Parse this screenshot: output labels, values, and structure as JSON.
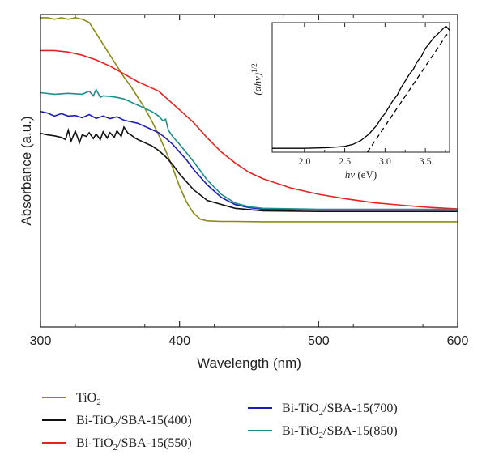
{
  "chart_data": [
    {
      "type": "line",
      "xlabel": "Wavelength (nm)",
      "ylabel": "Absorbance (a.u.)",
      "xlim": [
        300,
        600
      ],
      "ylim": [
        0,
        1
      ],
      "xticks": [
        "300",
        "400",
        "500",
        "600"
      ],
      "yticks": [],
      "legend_position": "bottom",
      "series": [
        {
          "name": "TiO2",
          "name_parts": [
            "TiO",
            "2",
            ""
          ],
          "color": "#8b8b14",
          "x": [
            300,
            305,
            310,
            315,
            320,
            325,
            330,
            335,
            340,
            345,
            350,
            355,
            360,
            365,
            370,
            375,
            380,
            385,
            390,
            395,
            400,
            405,
            410,
            415,
            420,
            430,
            440,
            460,
            500,
            550,
            600
          ],
          "y": [
            0.99,
            0.99,
            0.985,
            0.99,
            0.985,
            0.99,
            0.985,
            0.975,
            0.94,
            0.905,
            0.87,
            0.835,
            0.8,
            0.77,
            0.735,
            0.7,
            0.66,
            0.615,
            0.565,
            0.51,
            0.45,
            0.4,
            0.365,
            0.345,
            0.34,
            0.338,
            0.338,
            0.337,
            0.337,
            0.337,
            0.337
          ]
        },
        {
          "name": "Bi-TiO2/SBA-15(400)",
          "name_parts": [
            "Bi-TiO",
            "2",
            "/SBA-15(400)"
          ],
          "color": "#111111",
          "x": [
            300,
            305,
            310,
            315,
            318,
            320,
            322,
            325,
            328,
            330,
            333,
            335,
            338,
            340,
            343,
            345,
            348,
            350,
            353,
            355,
            358,
            360,
            363,
            365,
            368,
            370,
            375,
            380,
            385,
            390,
            395,
            400,
            410,
            420,
            440,
            460,
            500,
            550,
            600
          ],
          "y": [
            0.62,
            0.615,
            0.612,
            0.607,
            0.6,
            0.63,
            0.595,
            0.627,
            0.59,
            0.615,
            0.61,
            0.622,
            0.603,
            0.618,
            0.6,
            0.625,
            0.605,
            0.622,
            0.607,
            0.628,
            0.61,
            0.64,
            0.62,
            0.615,
            0.605,
            0.6,
            0.59,
            0.58,
            0.565,
            0.545,
            0.52,
            0.49,
            0.44,
            0.405,
            0.38,
            0.372,
            0.37,
            0.37,
            0.37
          ]
        },
        {
          "name": "Bi-TiO2/SBA-15(550)",
          "name_parts": [
            "Bi-TiO",
            "2",
            "/SBA-15(550)"
          ],
          "color": "#e8231f",
          "x": [
            300,
            310,
            320,
            330,
            340,
            350,
            360,
            370,
            380,
            385,
            390,
            395,
            400,
            410,
            420,
            430,
            440,
            450,
            460,
            480,
            500,
            520,
            540,
            560,
            580,
            600
          ],
          "y": [
            0.885,
            0.885,
            0.88,
            0.87,
            0.855,
            0.835,
            0.81,
            0.785,
            0.765,
            0.755,
            0.735,
            0.715,
            0.695,
            0.655,
            0.605,
            0.56,
            0.525,
            0.495,
            0.475,
            0.445,
            0.425,
            0.41,
            0.398,
            0.39,
            0.383,
            0.378
          ]
        },
        {
          "name": "Bi-TiO2/SBA-15(700)",
          "name_parts": [
            "Bi-TiO",
            "2",
            "/SBA-15(700)"
          ],
          "color": "#1c1cb8",
          "x": [
            300,
            305,
            310,
            315,
            320,
            325,
            330,
            335,
            340,
            345,
            350,
            355,
            360,
            365,
            370,
            375,
            380,
            385,
            390,
            395,
            400,
            405,
            410,
            420,
            430,
            440,
            450,
            460,
            500,
            550,
            600
          ],
          "y": [
            0.69,
            0.685,
            0.675,
            0.683,
            0.675,
            0.677,
            0.67,
            0.68,
            0.668,
            0.675,
            0.667,
            0.673,
            0.662,
            0.657,
            0.652,
            0.642,
            0.632,
            0.622,
            0.605,
            0.585,
            0.56,
            0.535,
            0.505,
            0.455,
            0.415,
            0.392,
            0.382,
            0.377,
            0.375,
            0.375,
            0.375
          ]
        },
        {
          "name": "Bi-TiO2/SBA-15(850)",
          "name_parts": [
            "Bi-TiO",
            "2",
            "/SBA-15(850)"
          ],
          "color": "#19908c",
          "x": [
            300,
            310,
            320,
            330,
            335,
            338,
            340,
            343,
            345,
            350,
            355,
            360,
            365,
            370,
            375,
            380,
            385,
            388,
            390,
            392,
            395,
            400,
            410,
            420,
            430,
            440,
            450,
            460,
            500,
            550,
            600
          ],
          "y": [
            0.75,
            0.745,
            0.748,
            0.745,
            0.755,
            0.74,
            0.76,
            0.735,
            0.74,
            0.738,
            0.735,
            0.73,
            0.72,
            0.71,
            0.7,
            0.69,
            0.675,
            0.66,
            0.665,
            0.63,
            0.61,
            0.585,
            0.53,
            0.47,
            0.425,
            0.397,
            0.385,
            0.38,
            0.377,
            0.377,
            0.377
          ]
        }
      ]
    },
    {
      "type": "line",
      "xlabel": "hν (eV)",
      "xlabel_parts": [
        "hν",
        " (eV)"
      ],
      "ylabel": "(αhν)1/2",
      "ylabel_parts": [
        "(αhν)",
        "1/2"
      ],
      "xlim": [
        1.6,
        3.8
      ],
      "ylim": [
        0,
        1
      ],
      "xticks": [
        "2.0",
        "2.5",
        "3.0",
        "3.5"
      ],
      "series": [
        {
          "name": "",
          "color": "#000000",
          "style": "solid",
          "x": [
            1.6,
            2.0,
            2.3,
            2.5,
            2.6,
            2.7,
            2.8,
            2.9,
            2.95,
            3.0,
            3.05,
            3.1,
            3.15,
            3.2,
            3.25,
            3.3,
            3.35,
            3.4,
            3.45,
            3.5,
            3.55,
            3.6,
            3.65,
            3.7,
            3.73,
            3.76,
            3.8
          ],
          "y": [
            0.03,
            0.03,
            0.035,
            0.045,
            0.06,
            0.09,
            0.14,
            0.21,
            0.26,
            0.3,
            0.35,
            0.4,
            0.44,
            0.5,
            0.55,
            0.6,
            0.64,
            0.7,
            0.74,
            0.8,
            0.84,
            0.88,
            0.91,
            0.94,
            0.96,
            0.97,
            0.94
          ]
        },
        {
          "name": "",
          "color": "#000000",
          "style": "dashed",
          "x": [
            2.78,
            3.78
          ],
          "y": [
            0.0,
            0.92
          ]
        }
      ]
    }
  ]
}
